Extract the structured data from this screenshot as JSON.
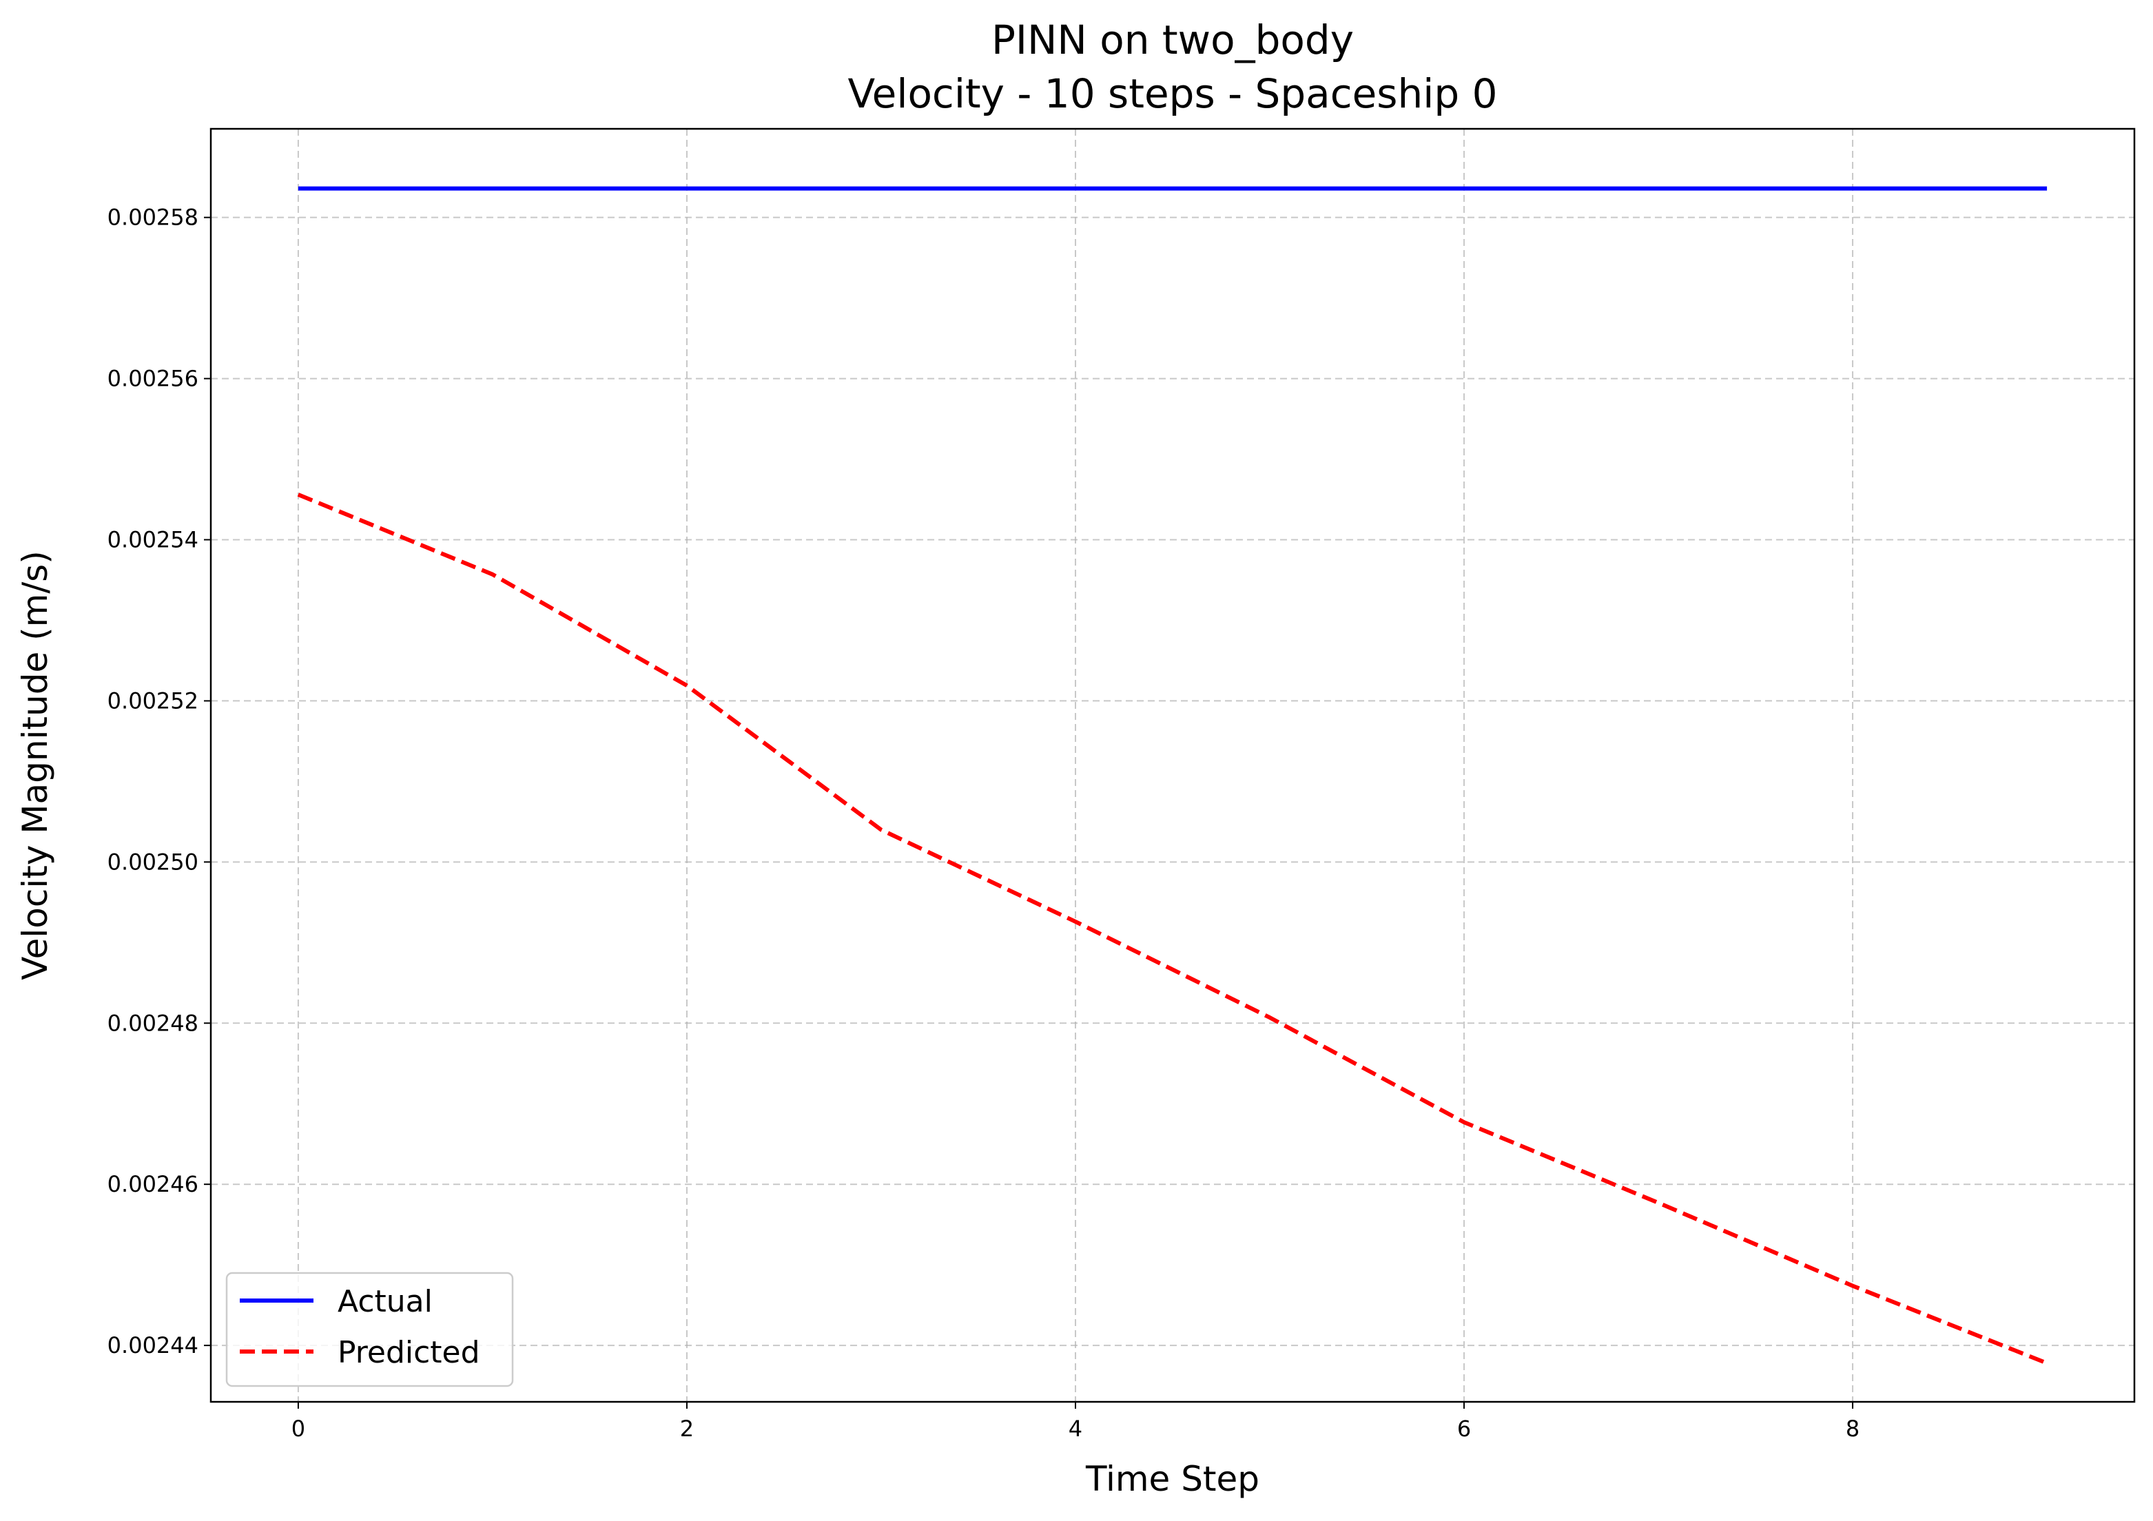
{
  "chart_data": {
    "type": "line",
    "title": "PINN on two_body",
    "subtitle": "Velocity - 10 steps - Spaceship 0",
    "xlabel": "Time Step",
    "ylabel": "Velocity Magnitude (m/s)",
    "x": [
      0,
      1,
      2,
      3,
      4,
      5,
      6,
      7,
      8,
      9
    ],
    "series": [
      {
        "name": "Actual",
        "style": "solid",
        "color": "#0000ff",
        "values": [
          0.0025836,
          0.0025836,
          0.0025836,
          0.0025836,
          0.0025836,
          0.0025836,
          0.0025836,
          0.0025836,
          0.0025836,
          0.0025836
        ]
      },
      {
        "name": "Predicted",
        "style": "dashed",
        "color": "#ff0000",
        "values": [
          0.0025456,
          0.0025357,
          0.0025219,
          0.002504,
          0.0024926,
          0.0024807,
          0.0024677,
          0.0024577,
          0.0024474,
          0.0024378
        ]
      }
    ],
    "xlim": [
      -0.45,
      9.45
    ],
    "ylim": [
      0.002433,
      0.002591
    ],
    "xticks": [
      0,
      2,
      4,
      6,
      8
    ],
    "yticks": [
      0.00244,
      0.00246,
      0.00248,
      0.0025,
      0.00252,
      0.00254,
      0.00256,
      0.00258
    ],
    "xtick_labels": [
      "0",
      "2",
      "4",
      "6",
      "8"
    ],
    "ytick_labels": [
      "0.00244",
      "0.00246",
      "0.00248",
      "0.00250",
      "0.00252",
      "0.00254",
      "0.00256",
      "0.00258"
    ],
    "grid": true,
    "legend_position": "lower-left"
  }
}
